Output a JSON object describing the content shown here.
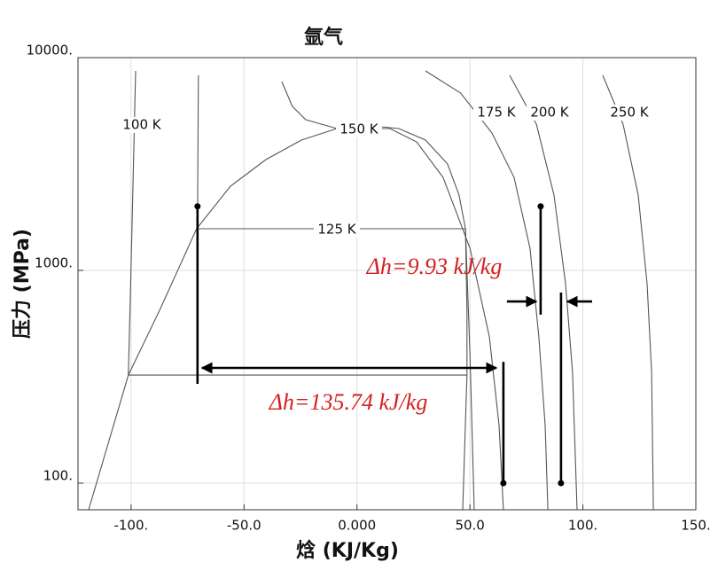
{
  "chart_data": {
    "type": "line",
    "title": "氩气",
    "x_label": "焓 (KJ/Kg)",
    "y_label": "压力 (MPa)",
    "xlim": [
      -123.5,
      150
    ],
    "ylim": [
      75,
      10000
    ],
    "log_y": true,
    "grid": true,
    "xticks": [
      {
        "value": -100,
        "label": "-100."
      },
      {
        "value": -50,
        "label": "-50.0"
      },
      {
        "value": 0,
        "label": "0.000"
      },
      {
        "value": 50,
        "label": "50.0"
      },
      {
        "value": 100,
        "label": "100."
      },
      {
        "value": 150,
        "label": "150."
      }
    ],
    "yticks": [
      {
        "value": 100,
        "label": "100."
      },
      {
        "value": 1000,
        "label": "1000."
      },
      {
        "value": 10000,
        "label": "10000."
      }
    ],
    "series": [
      {
        "style": "thin",
        "color": "#555555",
        "x": [
          -118.8,
          -101.2,
          -87.4,
          -71.0,
          -56.0,
          -40.3,
          -24.6,
          -8.9,
          6.8,
          18.5,
          30.3,
          40.1,
          45.2,
          48.0,
          48.7,
          48.7
        ],
        "values": [
          75,
          322,
          649,
          1570,
          2489,
          3319,
          4098,
          4642,
          4777,
          4642,
          4098,
          3162,
          2259,
          1570,
          649,
          322
        ]
      },
      {
        "name": "100 K",
        "style": "thin",
        "color": "#555555",
        "x": [
          -98.0,
          -100,
          -101.2,
          48.7,
          46.8
        ],
        "values": [
          8660,
          1050,
          322,
          322,
          75
        ]
      },
      {
        "name": "125 K",
        "style": "thin",
        "color": "#555555",
        "x": [
          -70.2,
          -70.6,
          48.0,
          50.0,
          51.9
        ],
        "values": [
          8254,
          1570,
          1570,
          401,
          75
        ]
      },
      {
        "name": "150 K",
        "style": "thin",
        "color": "#555555",
        "x": [
          -33.3,
          -28.6,
          -22.7,
          -8.9,
          14.6,
          26.4,
          38.1,
          50.0,
          58.6,
          62.9,
          64.8
        ],
        "values": [
          7718,
          5902,
          5109,
          4642,
          4642,
          4018,
          2738,
          1271,
          487,
          187,
          75
        ]
      },
      {
        "name": "175 K",
        "style": "thin",
        "color": "#555555",
        "x": [
          30.3,
          45.9,
          59.7,
          69.5,
          76.6,
          80.5,
          83.3,
          84.5
        ],
        "values": [
          8660,
          6813,
          4427,
          2738,
          1271,
          487,
          187,
          75
        ]
      },
      {
        "name": "200 K",
        "style": "thin",
        "color": "#555555",
        "x": [
          67.6,
          79.4,
          87.2,
          92.3,
          95.4,
          97.4
        ],
        "values": [
          8254,
          4870,
          2259,
          866,
          332,
          75
        ]
      },
      {
        "name": "250 K",
        "style": "thin",
        "color": "#555555",
        "x": [
          108.8,
          117.8,
          124.5,
          128.4,
          130.4,
          131.2
        ],
        "values": [
          8254,
          4870,
          2259,
          866,
          332,
          75
        ]
      },
      {
        "style": "thick",
        "color": "#000000",
        "x": [
          -70.6,
          -70.6
        ],
        "values": [
          2000,
          293
        ]
      },
      {
        "style": "thick",
        "color": "#000000",
        "x": [
          64.8,
          64.8
        ],
        "values": [
          372,
          100
        ]
      },
      {
        "style": "thick",
        "color": "#000000",
        "x": [
          81.3,
          81.3
        ],
        "values": [
          2000,
          619
        ]
      },
      {
        "style": "thick",
        "color": "#000000",
        "x": [
          90.3,
          90.3
        ],
        "values": [
          787,
          100
        ]
      },
      {
        "style": "dots",
        "color": "#000000",
        "x": [
          -70.6,
          64.8,
          81.3,
          90.3
        ],
        "values": [
          2000,
          100,
          2000,
          100
        ]
      },
      {
        "style": "double-arrow",
        "color": "#000000",
        "x": [
          -68.6,
          61.7
        ],
        "values": [
          348,
          348
        ]
      },
      {
        "style": "arrow",
        "color": "#000000",
        "x": [
          66.4,
          79.4
        ],
        "values": [
          714,
          714
        ]
      },
      {
        "style": "arrow",
        "color": "#000000",
        "x": [
          104.1,
          93.1
        ],
        "values": [
          714,
          714
        ]
      }
    ],
    "annotations": [
      "Δh=9.93 kJ/kg",
      "Δh=135.74 kJ/kg"
    ]
  }
}
